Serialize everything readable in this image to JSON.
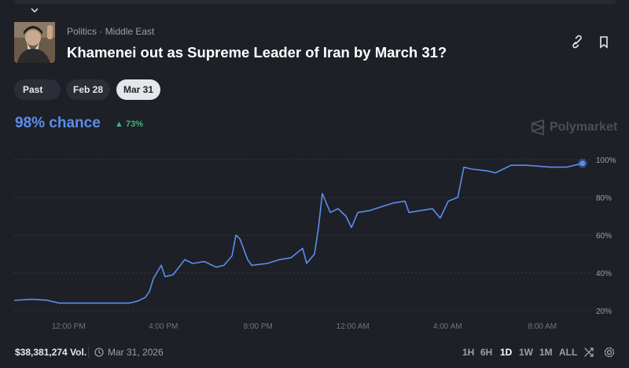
{
  "header": {
    "category": "Politics",
    "subcategory": "Middle East",
    "title": "Khamenei out as Supreme Leader of Iran by March 31?"
  },
  "filters": [
    "Past",
    "Feb 28",
    "Mar 31"
  ],
  "selected_filter": "Mar 31",
  "chance": {
    "text": "98% chance",
    "change": "73%"
  },
  "brand": "Polymarket",
  "footer": {
    "volume": "$38,381,274 Vol.",
    "date": "Mar 31, 2026",
    "ranges": [
      "1H",
      "6H",
      "1D",
      "1W",
      "1M",
      "ALL"
    ],
    "selected_range": "1D"
  },
  "chart_data": {
    "type": "line",
    "color": "#5b8def",
    "grid": true,
    "x": [
      9.7,
      10.43,
      11.09,
      11.59,
      13.09,
      14.58,
      14.91,
      15.24,
      15.41,
      15.58,
      15.91,
      16.07,
      16.41,
      16.9,
      17.24,
      17.73,
      18.23,
      18.56,
      18.9,
      19.06,
      19.23,
      19.56,
      19.73,
      20.39,
      20.89,
      21.39,
      21.88,
      22.05,
      22.38,
      22.55,
      22.71,
      23.05,
      23.38,
      23.71,
      23.94,
      24.21,
      24.71,
      25.2,
      25.7,
      26.2,
      26.37,
      26.86,
      27.36,
      27.69,
      28.03,
      28.43,
      28.69,
      29.02,
      29.69,
      30.02,
      30.68,
      31.35,
      32.34,
      33.01,
      33.7
    ],
    "values": [
      25.4,
      26,
      25.5,
      24,
      24,
      24,
      25,
      27,
      30,
      37,
      44,
      38,
      39,
      47,
      45,
      46,
      43,
      44,
      49,
      60,
      58,
      47,
      44,
      45,
      47,
      48,
      53,
      45,
      50,
      64,
      82,
      72,
      74,
      70,
      64,
      72,
      73,
      75,
      77,
      78,
      72,
      73,
      74,
      69,
      78,
      80,
      96,
      95,
      94,
      93,
      97,
      97,
      96,
      96,
      98
    ],
    "xlim": [
      9.7,
      34.0
    ],
    "xticks": [
      {
        "value": 12,
        "label": "12:00 PM"
      },
      {
        "value": 16,
        "label": "4:00 PM"
      },
      {
        "value": 20,
        "label": "8:00 PM"
      },
      {
        "value": 24,
        "label": "12:00 AM"
      },
      {
        "value": 28,
        "label": "4:00 AM"
      },
      {
        "value": 32,
        "label": "8:00 AM"
      }
    ],
    "ylim": [
      16,
      105
    ],
    "yticks": [
      {
        "value": 20,
        "label": "20%"
      },
      {
        "value": 40,
        "label": "40%"
      },
      {
        "value": 60,
        "label": "60%"
      },
      {
        "value": 80,
        "label": "80%"
      },
      {
        "value": 100,
        "label": "100%"
      }
    ]
  }
}
